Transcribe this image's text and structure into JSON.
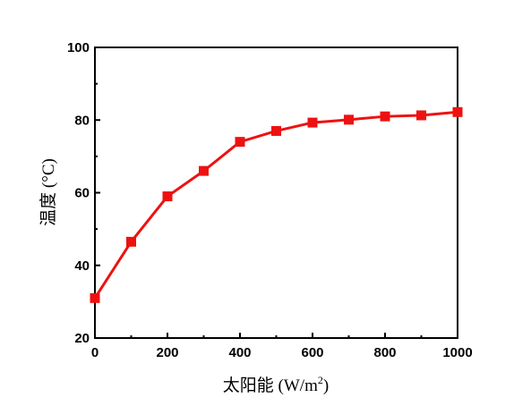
{
  "chart_data": {
    "type": "line",
    "xlabel": "太阳能 (W/m²)",
    "xlabel_main": "太阳能 (W/m",
    "xlabel_sup": "2",
    "xlabel_end": ")",
    "ylabel": "温度 (°C)",
    "xlim": [
      0,
      1000
    ],
    "ylim": [
      20,
      100
    ],
    "xticks": [
      0,
      200,
      400,
      600,
      800,
      1000
    ],
    "yticks": [
      20,
      40,
      60,
      80,
      100
    ],
    "grid": false,
    "series": [
      {
        "color": "#ee1111",
        "marker": "square",
        "points": [
          {
            "x": 0,
            "y": 31
          },
          {
            "x": 100,
            "y": 46.5
          },
          {
            "x": 200,
            "y": 59
          },
          {
            "x": 300,
            "y": 66
          },
          {
            "x": 400,
            "y": 74
          },
          {
            "x": 500,
            "y": 77
          },
          {
            "x": 600,
            "y": 79.3
          },
          {
            "x": 700,
            "y": 80.1
          },
          {
            "x": 800,
            "y": 81
          },
          {
            "x": 900,
            "y": 81.3
          },
          {
            "x": 1000,
            "y": 82.2
          }
        ]
      }
    ]
  }
}
